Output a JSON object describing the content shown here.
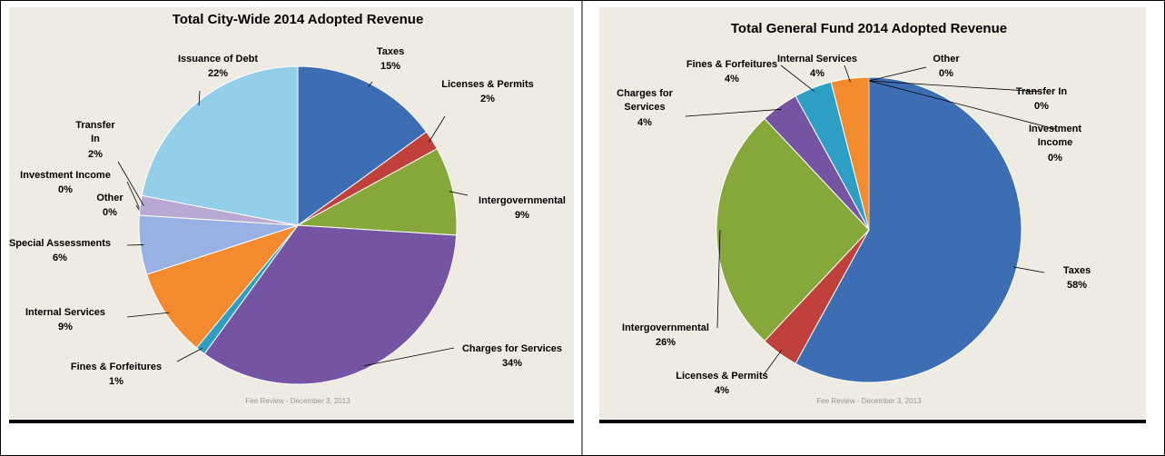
{
  "chart_data": [
    {
      "type": "pie",
      "title": "Total City-Wide 2014 Adopted Revenue",
      "footer": "Fee Review - December 3, 2013",
      "categories": [
        "Taxes",
        "Licenses & Permits",
        "Intergovernmental",
        "Charges for Services",
        "Fines & Forfeitures",
        "Internal Services",
        "Special Assessments",
        "Other",
        "Investment Income",
        "Transfer In",
        "Issuance of Debt"
      ],
      "values": [
        15,
        2,
        9,
        34,
        1,
        9,
        6,
        0,
        0,
        2,
        22
      ],
      "value_labels": [
        "15%",
        "2%",
        "9%",
        "34%",
        "1%",
        "9%",
        "6%",
        "0%",
        "0%",
        "2%",
        "22%"
      ],
      "colors": [
        "#3d6db3",
        "#c0403c",
        "#86a83a",
        "#7555a3",
        "#2e9fc4",
        "#f48a2e",
        "#96b1e2",
        "#c6d89e",
        "#d9d2b8",
        "#b9a8d3",
        "#93cfe8"
      ]
    },
    {
      "type": "pie",
      "title": "Total General Fund 2014 Adopted Revenue",
      "footer": "Fee Review - December 3, 2013",
      "categories": [
        "Taxes",
        "Licenses & Permits",
        "Intergovernmental",
        "Charges for Services",
        "Fines & Forfeitures",
        "Internal Services",
        "Other",
        "Transfer In",
        "Investment Income"
      ],
      "values": [
        58,
        4,
        26,
        4,
        4,
        4,
        0,
        0,
        0
      ],
      "value_labels": [
        "58%",
        "4%",
        "26%",
        "4%",
        "4%",
        "4%",
        "0%",
        "0%",
        "0%"
      ],
      "colors": [
        "#3d6db3",
        "#c0403c",
        "#86a83a",
        "#7555a3",
        "#2e9fc4",
        "#f48a2e",
        "#a9b78a",
        "#d9d2b8",
        "#e0dccb"
      ]
    }
  ]
}
